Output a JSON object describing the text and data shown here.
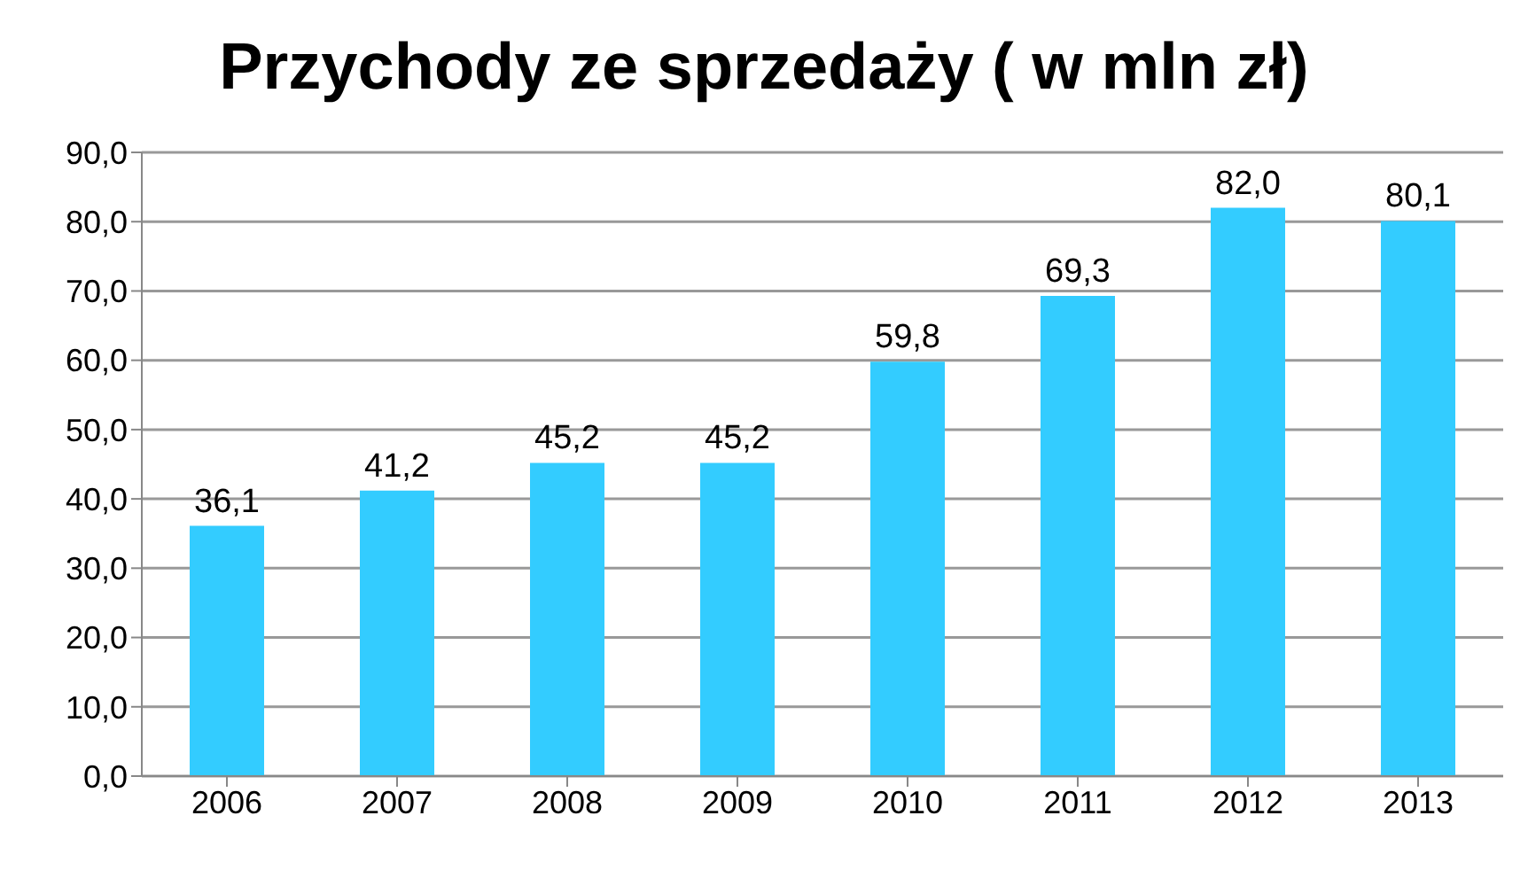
{
  "chart_data": {
    "type": "bar",
    "title": "Przychody ze sprzedaży ( w mln zł)",
    "categories": [
      "2006",
      "2007",
      "2008",
      "2009",
      "2010",
      "2011",
      "2012",
      "2013"
    ],
    "values": [
      36.1,
      41.2,
      45.2,
      45.2,
      59.8,
      69.3,
      82.0,
      80.1
    ],
    "value_labels": [
      "36,1",
      "41,2",
      "45,2",
      "45,2",
      "59,8",
      "69,3",
      "82,0",
      "80,1"
    ],
    "color": "#33ccff",
    "ylim": [
      0,
      90
    ],
    "yticks": [
      {
        "value": 0,
        "label": "0,0"
      },
      {
        "value": 10,
        "label": "10,0"
      },
      {
        "value": 20,
        "label": "20,0"
      },
      {
        "value": 30,
        "label": "30,0"
      },
      {
        "value": 40,
        "label": "40,0"
      },
      {
        "value": 50,
        "label": "50,0"
      },
      {
        "value": 60,
        "label": "60,0"
      },
      {
        "value": 70,
        "label": "70,0"
      },
      {
        "value": 80,
        "label": "80,0"
      },
      {
        "value": 90,
        "label": "90,0"
      }
    ],
    "grid": "y"
  }
}
